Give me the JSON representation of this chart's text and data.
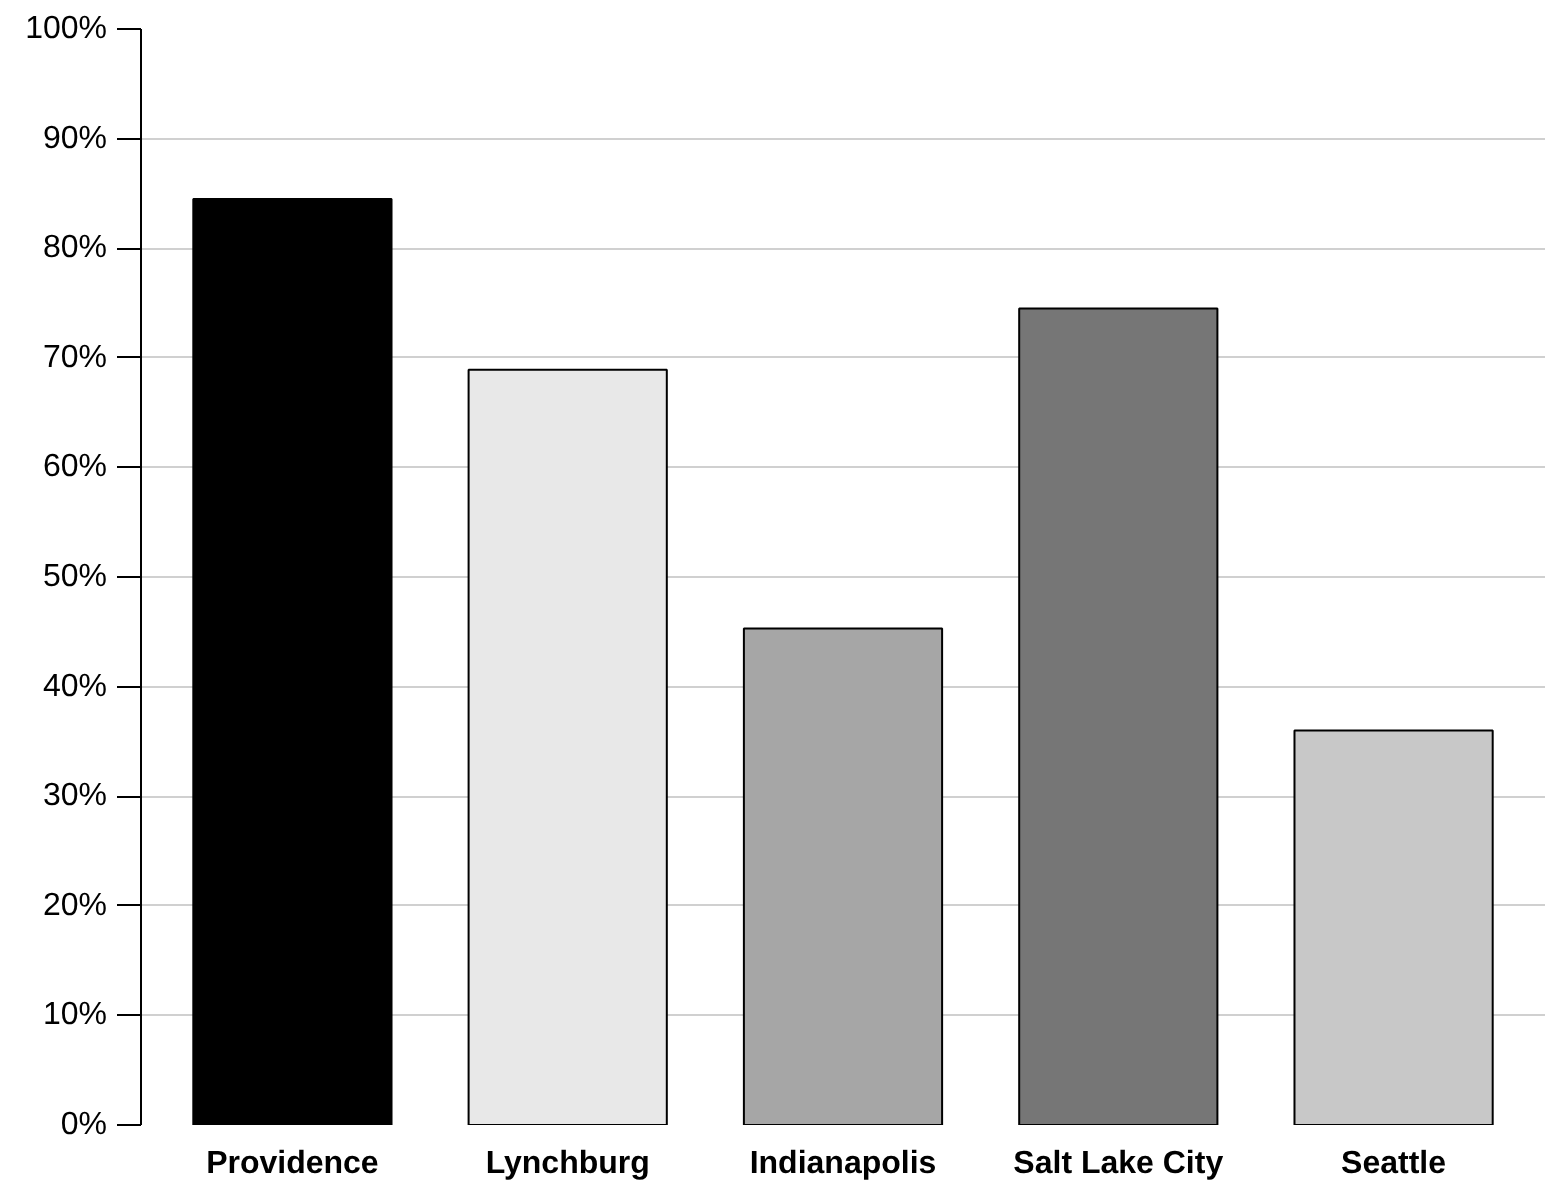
{
  "chart_data": {
    "type": "bar",
    "categories": [
      "Providence",
      "Lynchburg",
      "Indianapolis",
      "Salt Lake City",
      "Seattle"
    ],
    "values": [
      84.5,
      68.9,
      45.3,
      74.5,
      36.0
    ],
    "colors": [
      "#000000",
      "#e8e8e8",
      "#a6a6a6",
      "#767676",
      "#c8c8c8"
    ],
    "ylim": [
      0,
      100
    ],
    "yticks": [
      {
        "value": 0,
        "label": "0%"
      },
      {
        "value": 10,
        "label": "10%"
      },
      {
        "value": 20,
        "label": "20%"
      },
      {
        "value": 30,
        "label": "30%"
      },
      {
        "value": 40,
        "label": "40%"
      },
      {
        "value": 50,
        "label": "50%"
      },
      {
        "value": 60,
        "label": "60%"
      },
      {
        "value": 70,
        "label": "70%"
      },
      {
        "value": 80,
        "label": "80%"
      },
      {
        "value": 90,
        "label": "90%"
      },
      {
        "value": 100,
        "label": "100%"
      }
    ],
    "grid": "y"
  }
}
